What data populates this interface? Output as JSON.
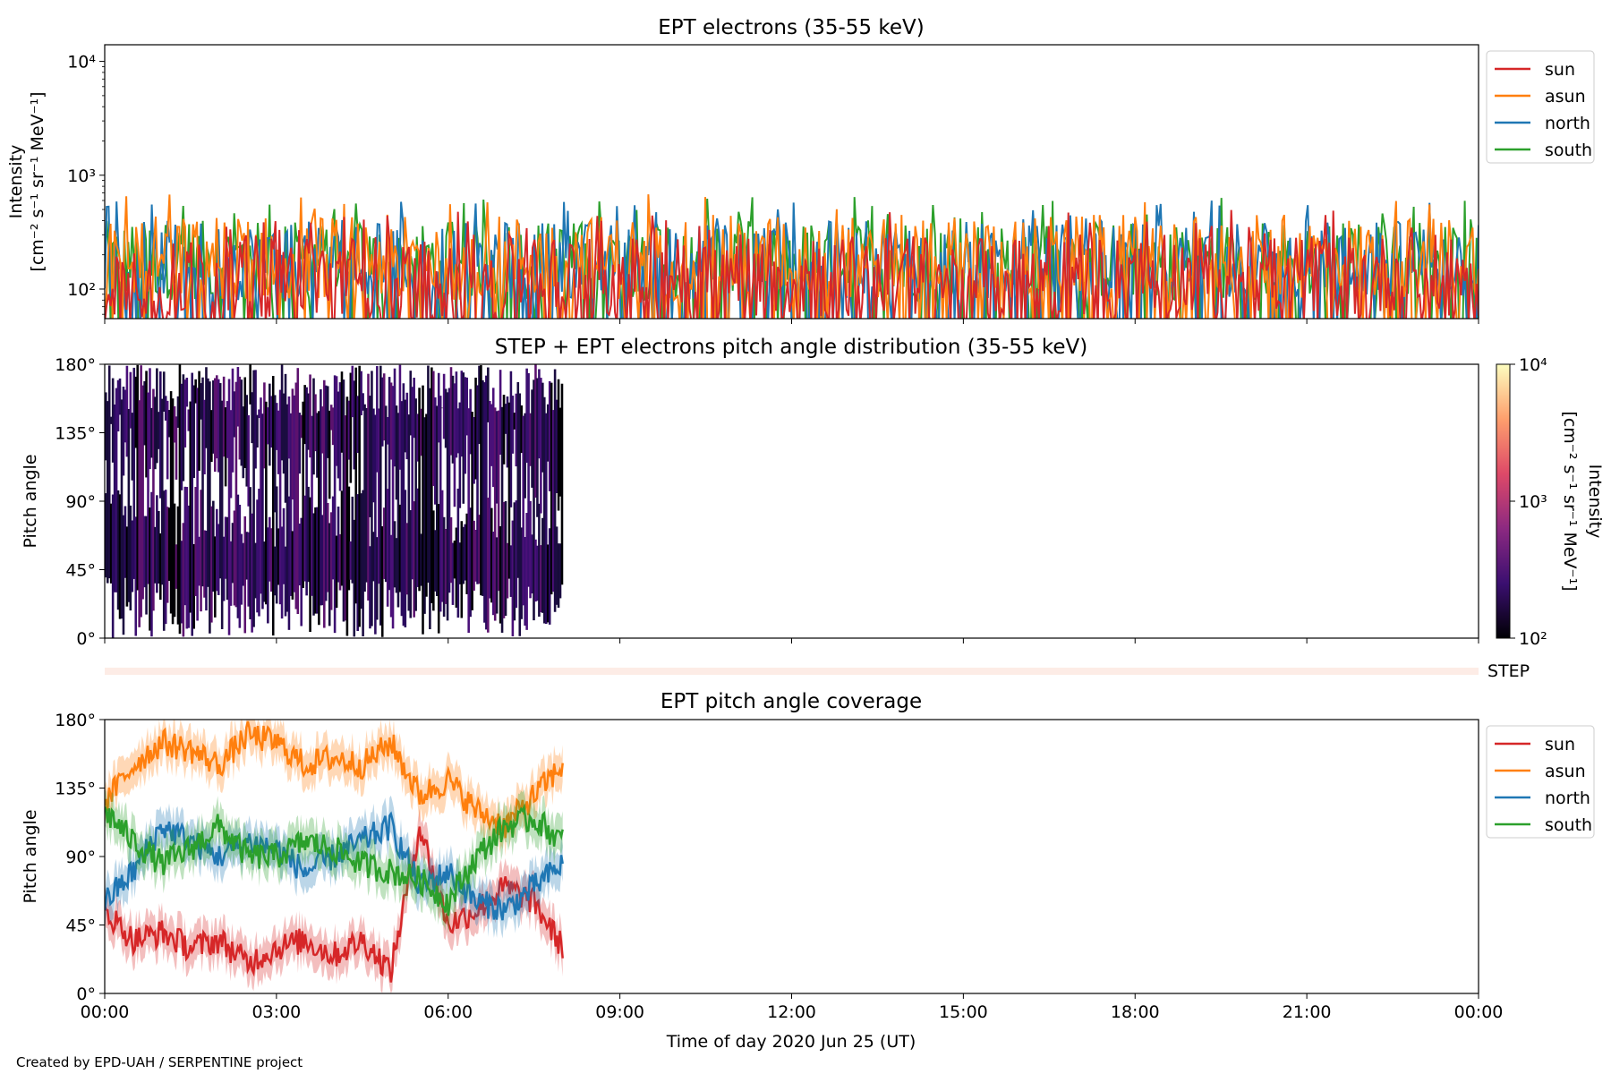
{
  "credit": "Created by EPD-UAH / SERPENTINE project",
  "xlabel": "Time of day 2020 Jun 25 (UT)",
  "xticks": [
    "00:00",
    "03:00",
    "06:00",
    "09:00",
    "12:00",
    "15:00",
    "18:00",
    "21:00",
    "00:00"
  ],
  "colors": {
    "sun": "#d62728",
    "asun": "#ff7f0e",
    "north": "#1f77b4",
    "south": "#2ca02c"
  },
  "chart_data": [
    {
      "type": "line",
      "title": "EPT electrons (35-55 keV)",
      "ylabel_lines": [
        "Intensity",
        "[cm⁻² s⁻¹ sr⁻¹ MeV⁻¹]"
      ],
      "yscale": "log",
      "ylim": [
        55,
        14000
      ],
      "yticks": [
        "10⁴",
        "10³",
        "10²"
      ],
      "xrange_hours": [
        0,
        24
      ],
      "legend_location": "outside-right-top",
      "series": [
        {
          "name": "sun",
          "typical_range": [
            55,
            300
          ],
          "peak": 500
        },
        {
          "name": "asun",
          "typical_range": [
            80,
            450
          ],
          "peak": 700
        },
        {
          "name": "north",
          "typical_range": [
            80,
            400
          ],
          "peak": 600
        },
        {
          "name": "south",
          "typical_range": [
            80,
            400
          ],
          "peak": 650
        }
      ]
    },
    {
      "type": "heatmap",
      "title": "STEP + EPT electrons pitch angle distribution (35-55 keV)",
      "ylabel": "Pitch angle",
      "yticks": [
        "180°",
        "135°",
        "90°",
        "45°",
        "0°"
      ],
      "ylim": [
        0,
        180
      ],
      "data_extent_hours": [
        0,
        8
      ],
      "colorbar": {
        "scale": "log",
        "range": [
          100,
          10000
        ],
        "ticks": [
          "10⁴",
          "10³",
          "10²"
        ],
        "label": "Intensity",
        "label_units": "[cm⁻² s⁻¹ sr⁻¹ MeV⁻¹]",
        "colormap": "inferno"
      },
      "step_label": "STEP"
    },
    {
      "type": "line",
      "title": "EPT pitch angle coverage",
      "ylabel": "Pitch angle",
      "yticks": [
        "180°",
        "135°",
        "90°",
        "45°",
        "0°"
      ],
      "ylim": [
        0,
        180
      ],
      "data_extent_hours": [
        0,
        8
      ],
      "legend_location": "outside-right-top",
      "series": [
        {
          "name": "sun",
          "x_hours": [
            0,
            0.5,
            1,
            1.5,
            2,
            2.5,
            3,
            3.5,
            4,
            4.5,
            5,
            5.5,
            6,
            6.5,
            7,
            7.5,
            8
          ],
          "y": [
            55,
            35,
            40,
            30,
            35,
            20,
            30,
            35,
            25,
            35,
            15,
            110,
            45,
            55,
            70,
            60,
            30
          ]
        },
        {
          "name": "asun",
          "x_hours": [
            0,
            0.5,
            1,
            1.5,
            2,
            2.5,
            3,
            3.5,
            4,
            4.5,
            5,
            5.5,
            6,
            6.5,
            7,
            7.5,
            8
          ],
          "y": [
            125,
            150,
            165,
            160,
            150,
            170,
            165,
            150,
            155,
            150,
            165,
            130,
            140,
            120,
            110,
            130,
            150
          ]
        },
        {
          "name": "north",
          "x_hours": [
            0,
            0.5,
            1,
            1.5,
            2,
            2.5,
            3,
            3.5,
            4,
            4.5,
            5,
            5.5,
            6,
            6.5,
            7,
            7.5,
            8
          ],
          "y": [
            60,
            80,
            110,
            100,
            90,
            100,
            95,
            80,
            90,
            100,
            110,
            70,
            80,
            60,
            55,
            70,
            85
          ]
        },
        {
          "name": "south",
          "x_hours": [
            0,
            0.5,
            1,
            1.5,
            2,
            2.5,
            3,
            3.5,
            4,
            4.5,
            5,
            5.5,
            6,
            6.5,
            7,
            7.5,
            8
          ],
          "y": [
            120,
            100,
            85,
            95,
            110,
            90,
            90,
            100,
            95,
            85,
            80,
            75,
            60,
            90,
            110,
            115,
            100
          ]
        }
      ]
    }
  ]
}
